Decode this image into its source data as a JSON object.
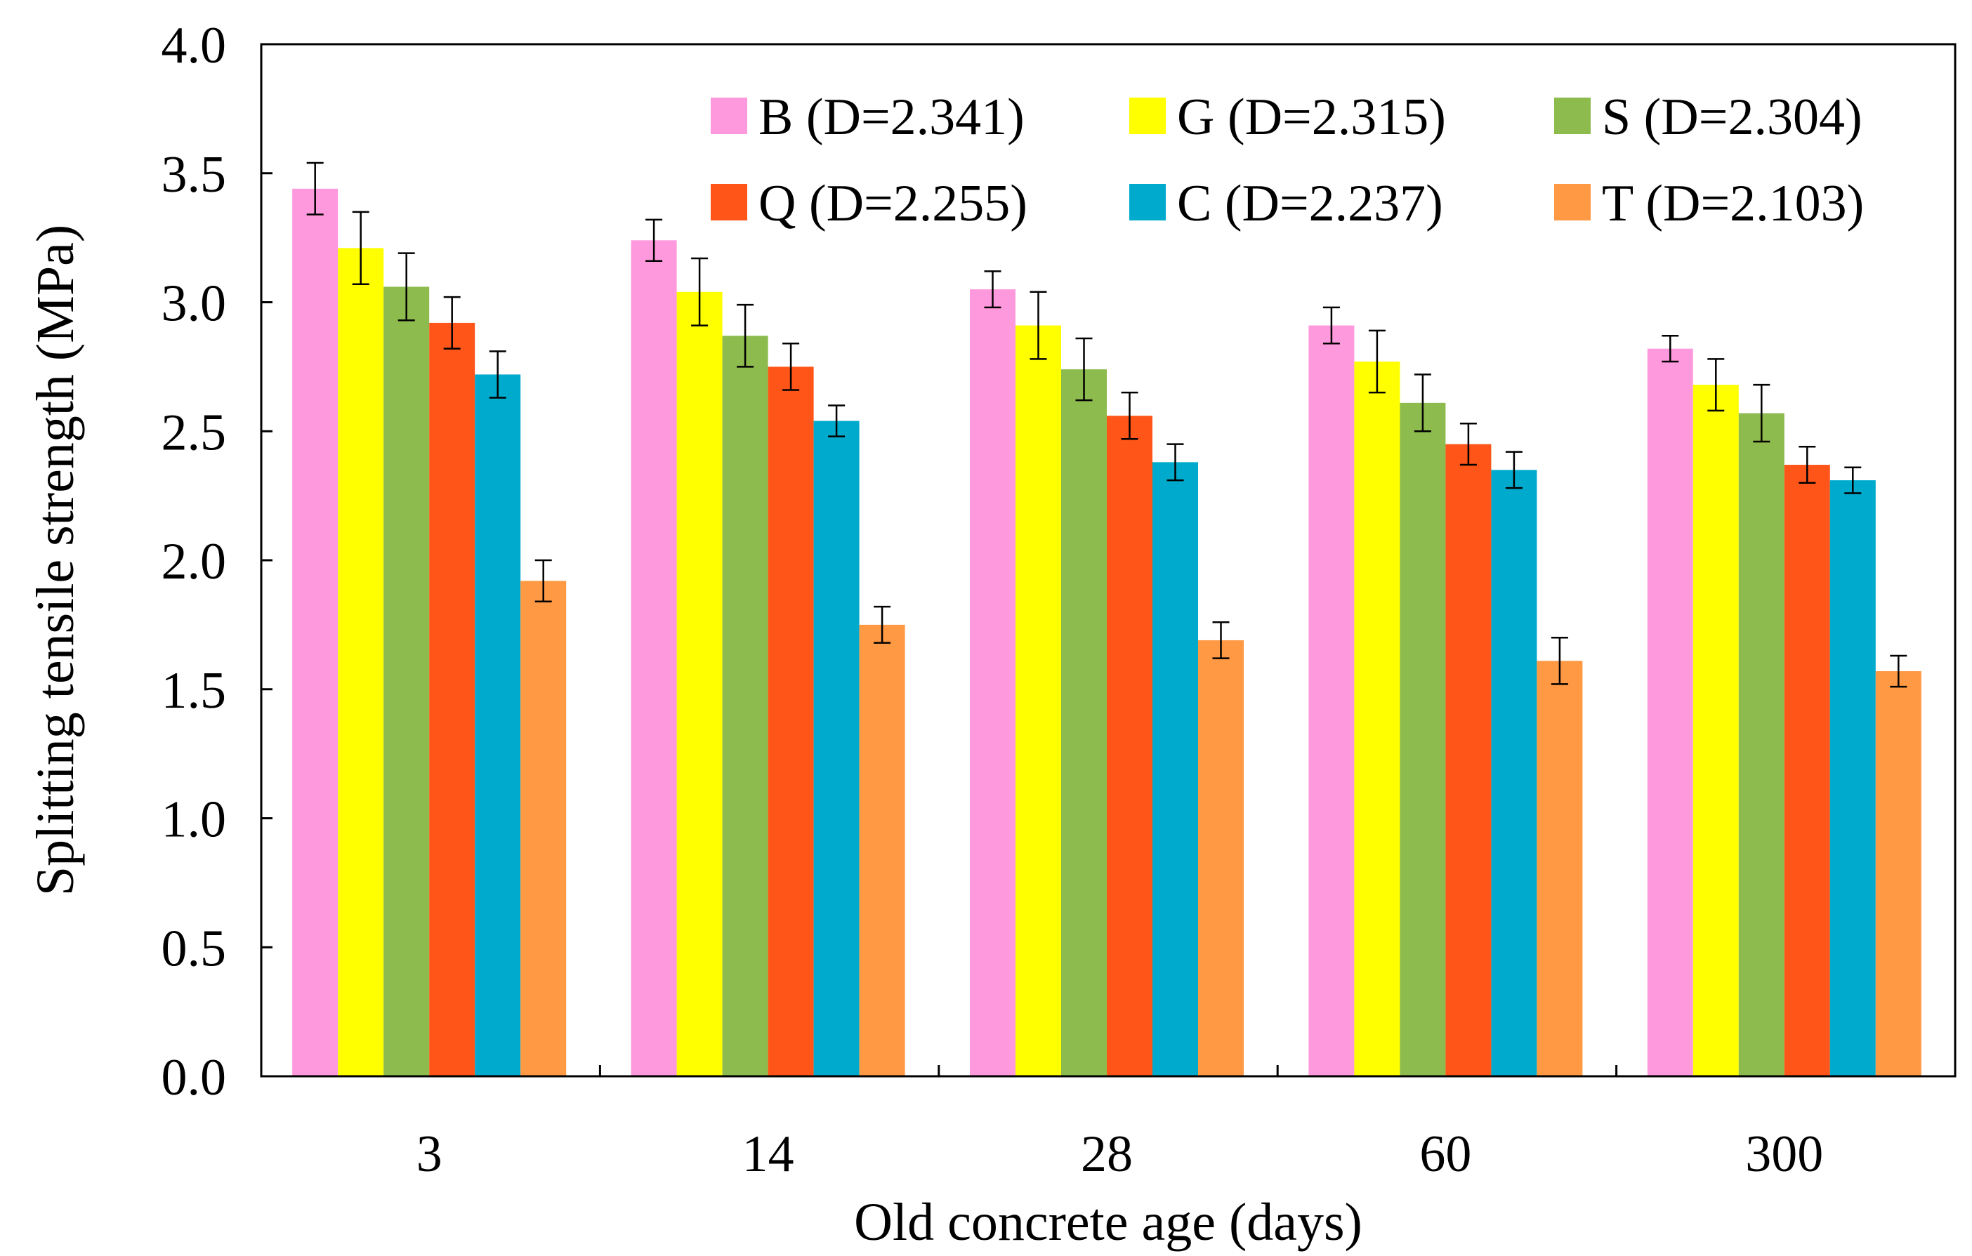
{
  "chart_data": {
    "type": "bar",
    "xlabel": "Old concrete age (days)",
    "ylabel": "Splitting tensile strength (MPa)",
    "ylim": [
      0,
      4.0
    ],
    "y_ticks": [
      "0.0",
      "0.5",
      "1.0",
      "1.5",
      "2.0",
      "2.5",
      "3.0",
      "3.5",
      "4.0"
    ],
    "categories": [
      "3",
      "14",
      "28",
      "60",
      "300"
    ],
    "legend_position": "top-right",
    "grid": false,
    "series": [
      {
        "name": "B (D=2.341)",
        "color": "#FF99DD",
        "values": [
          3.44,
          3.24,
          3.05,
          2.91,
          2.82
        ],
        "errors": [
          0.1,
          0.08,
          0.07,
          0.07,
          0.05
        ]
      },
      {
        "name": "G (D=2.315)",
        "color": "#FFFF00",
        "values": [
          3.21,
          3.04,
          2.91,
          2.77,
          2.68
        ],
        "errors": [
          0.14,
          0.13,
          0.13,
          0.12,
          0.1
        ]
      },
      {
        "name": "S (D=2.304)",
        "color": "#8DBB4E",
        "values": [
          3.06,
          2.87,
          2.74,
          2.61,
          2.57
        ],
        "errors": [
          0.13,
          0.12,
          0.12,
          0.11,
          0.11
        ]
      },
      {
        "name": "Q (D=2.255)",
        "color": "#FF5519",
        "values": [
          2.92,
          2.75,
          2.56,
          2.45,
          2.37
        ],
        "errors": [
          0.1,
          0.09,
          0.09,
          0.08,
          0.07
        ]
      },
      {
        "name": "C (D=2.237)",
        "color": "#00AACC",
        "values": [
          2.72,
          2.54,
          2.38,
          2.35,
          2.31
        ],
        "errors": [
          0.09,
          0.06,
          0.07,
          0.07,
          0.05
        ]
      },
      {
        "name": "T (D=2.103)",
        "color": "#FF9944",
        "values": [
          1.92,
          1.75,
          1.69,
          1.61,
          1.57
        ],
        "errors": [
          0.08,
          0.07,
          0.07,
          0.09,
          0.06
        ]
      }
    ]
  }
}
